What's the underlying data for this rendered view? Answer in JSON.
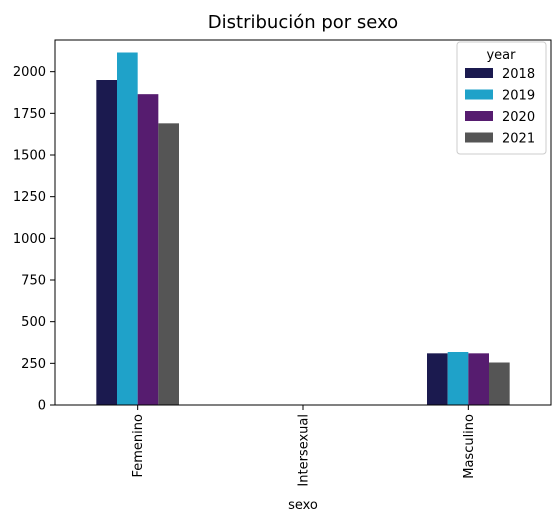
{
  "chart_data": {
    "type": "bar",
    "title": "Distribución por sexo",
    "xlabel": "sexo",
    "ylabel": "",
    "categories": [
      "Femenino",
      "Intersexual",
      "Masculino"
    ],
    "series": [
      {
        "name": "2018",
        "color": "#1b1a4f",
        "values": [
          1950,
          0,
          310
        ]
      },
      {
        "name": "2019",
        "color": "#1fa2c9",
        "values": [
          2115,
          0,
          318
        ]
      },
      {
        "name": "2020",
        "color": "#561c6f",
        "values": [
          1865,
          0,
          310
        ]
      },
      {
        "name": "2021",
        "color": "#555555",
        "values": [
          1690,
          0,
          255
        ]
      }
    ],
    "ylim": [
      0,
      2190
    ],
    "yticks": [
      0,
      250,
      500,
      750,
      1000,
      1250,
      1500,
      1750,
      2000
    ],
    "ytick_labels": [
      "0",
      "250",
      "500",
      "750",
      "1000",
      "1250",
      "1500",
      "1750",
      "2000"
    ],
    "grid": false,
    "legend": {
      "title": "year",
      "placement": "top-right"
    }
  }
}
